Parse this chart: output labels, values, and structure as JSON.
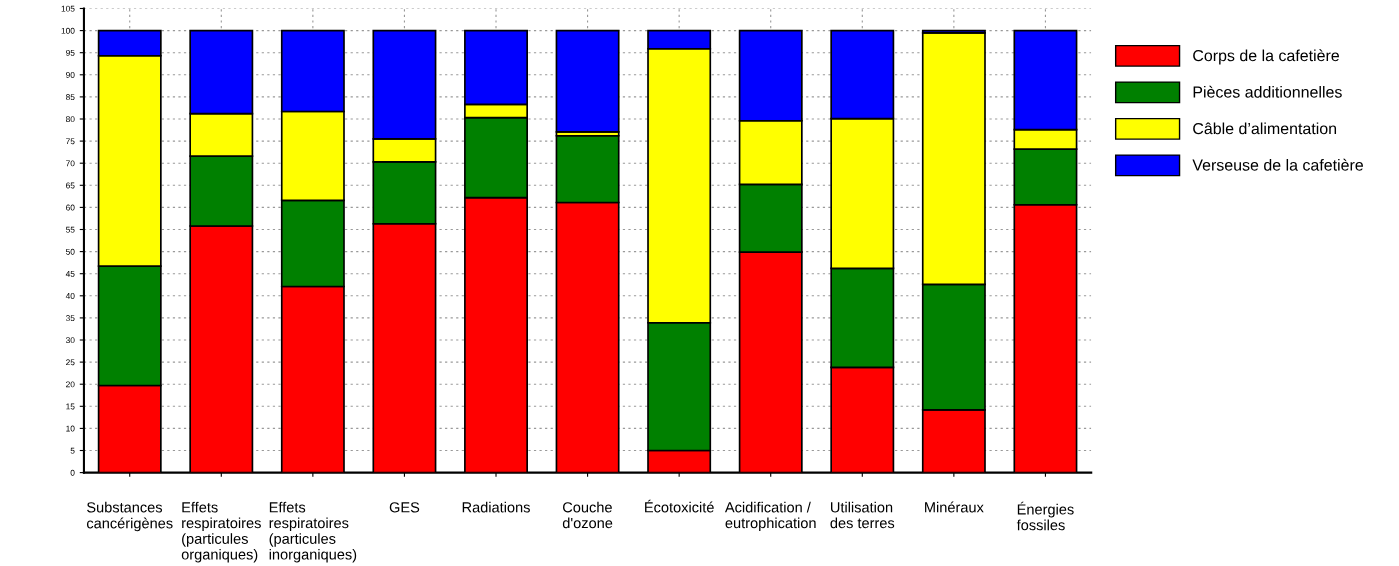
{
  "chart_data": {
    "type": "bar",
    "stacked": true,
    "categories": [
      "Substances\ncancérigènes",
      "Effets\nrespiratoires\n(particules\norganiques)",
      "Effets\nrespiratoires\n(particules\ninorganiques)",
      "GES",
      "Radiations",
      "Couche\nd'ozone",
      "Écotoxicité",
      "Acidification /\neutrophication",
      "Utilisation\ndes terres",
      "Minéraux",
      "Énergies\nfossiles"
    ],
    "series": [
      {
        "name": "Corps de la cafetière",
        "color": "#ff0000",
        "values": [
          19.7,
          55.8,
          42.1,
          56.3,
          62.2,
          61.1,
          5.0,
          49.9,
          23.8,
          14.2,
          60.6
        ]
      },
      {
        "name": "Pièces additionnelles",
        "color": "#008000",
        "values": [
          27.0,
          15.8,
          19.5,
          14.0,
          18.1,
          15.1,
          28.9,
          15.3,
          22.4,
          28.4,
          12.6
        ]
      },
      {
        "name": "Câble d’alimentation",
        "color": "#ffff00",
        "values": [
          47.6,
          9.6,
          20.1,
          5.2,
          3.0,
          0.9,
          62.0,
          14.4,
          33.9,
          56.9,
          4.4
        ]
      },
      {
        "name": "Verseuse de la cafetière",
        "color": "#0000ff",
        "values": [
          5.7,
          18.8,
          18.3,
          24.5,
          16.7,
          22.9,
          4.1,
          20.4,
          19.9,
          0.5,
          22.4
        ]
      }
    ],
    "ylim": [
      0,
      105
    ],
    "yticks": [
      0,
      5,
      10,
      15,
      20,
      25,
      30,
      35,
      40,
      45,
      50,
      55,
      60,
      65,
      70,
      75,
      80,
      85,
      90,
      95,
      100,
      105
    ],
    "grid": true,
    "legend": "right"
  }
}
